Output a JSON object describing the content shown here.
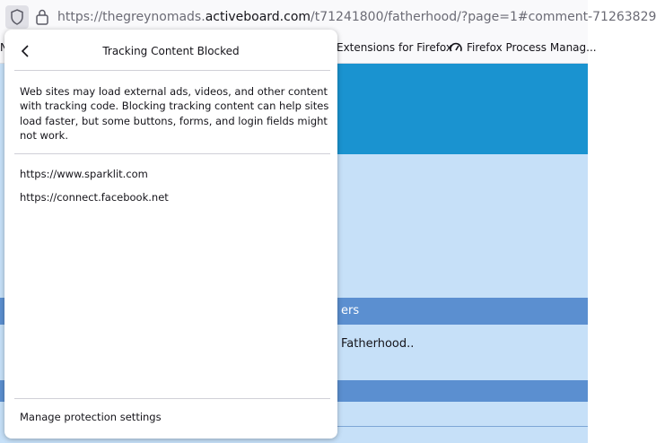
{
  "address_bar": {
    "url_prefix": "https://thegreynomads.",
    "url_domain": "activeboard.com",
    "url_path": "/t71241800/fatherhood/?page=1#comment-71263829"
  },
  "bookmarks": [
    "N",
    "Extensions for Firefox",
    "Firefox Process Manag..."
  ],
  "page": {
    "bar_text": "ers",
    "topic": "Fatherhood.."
  },
  "popup": {
    "title": "Tracking Content Blocked",
    "description": "Web sites may load external ads, videos, and other content with tracking code. Blocking tracking content can help sites load faster, but some buttons, forms, and login fields might not work.",
    "blocked": [
      "https://www.sparklit.com",
      "https://connect.facebook.net"
    ],
    "manage_link": "Manage protection settings"
  }
}
